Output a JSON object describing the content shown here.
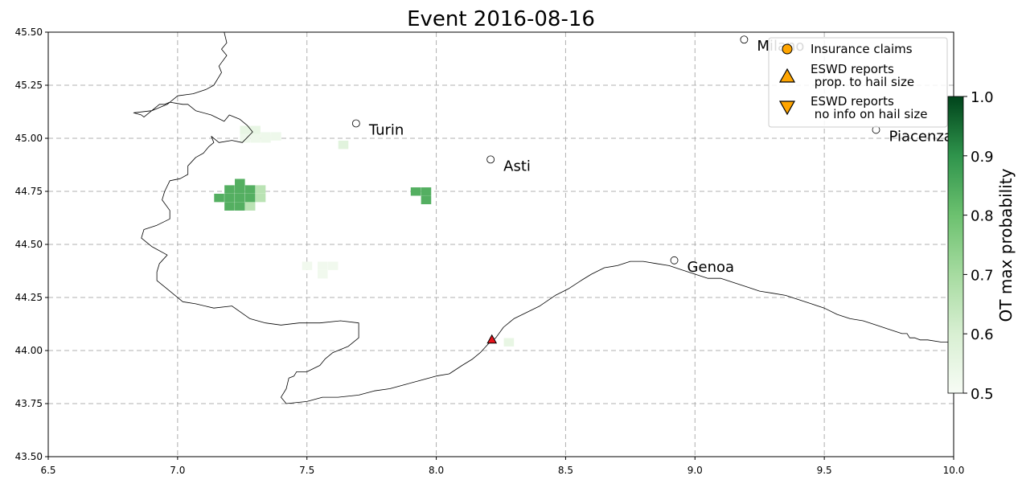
{
  "title": "Event 2016-08-16",
  "chart_data": {
    "type": "heatmap",
    "title": "Event 2016-08-16",
    "xlim": [
      6.5,
      10.0
    ],
    "ylim": [
      43.5,
      45.5
    ],
    "x_ticks": [
      "6.5",
      "7.0",
      "7.5",
      "8.0",
      "8.5",
      "9.0",
      "9.5",
      "10.0"
    ],
    "y_ticks": [
      "43.50",
      "43.75",
      "44.00",
      "44.25",
      "44.50",
      "44.75",
      "45.00",
      "45.25",
      "45.50"
    ],
    "grid": true,
    "cell_size_deg": 0.0375,
    "cells": [
      {
        "lon": 7.26,
        "lat": 45.04,
        "p": 0.55
      },
      {
        "lon": 7.3,
        "lat": 45.04,
        "p": 0.55
      },
      {
        "lon": 7.26,
        "lat": 45.0,
        "p": 0.53
      },
      {
        "lon": 7.3,
        "lat": 45.0,
        "p": 0.53
      },
      {
        "lon": 7.34,
        "lat": 45.0,
        "p": 0.53
      },
      {
        "lon": 7.34,
        "lat": 45.01,
        "p": 0.53
      },
      {
        "lon": 7.38,
        "lat": 45.01,
        "p": 0.53
      },
      {
        "lon": 7.64,
        "lat": 44.97,
        "p": 0.57
      },
      {
        "lon": 7.24,
        "lat": 44.79,
        "p": 0.84
      },
      {
        "lon": 7.2,
        "lat": 44.76,
        "p": 0.84
      },
      {
        "lon": 7.24,
        "lat": 44.76,
        "p": 0.84
      },
      {
        "lon": 7.28,
        "lat": 44.76,
        "p": 0.84
      },
      {
        "lon": 7.32,
        "lat": 44.76,
        "p": 0.66
      },
      {
        "lon": 7.16,
        "lat": 44.72,
        "p": 0.84
      },
      {
        "lon": 7.2,
        "lat": 44.72,
        "p": 0.84
      },
      {
        "lon": 7.24,
        "lat": 44.72,
        "p": 0.84
      },
      {
        "lon": 7.28,
        "lat": 44.72,
        "p": 0.84
      },
      {
        "lon": 7.32,
        "lat": 44.72,
        "p": 0.66
      },
      {
        "lon": 7.2,
        "lat": 44.68,
        "p": 0.84
      },
      {
        "lon": 7.24,
        "lat": 44.68,
        "p": 0.84
      },
      {
        "lon": 7.28,
        "lat": 44.68,
        "p": 0.66
      },
      {
        "lon": 7.92,
        "lat": 44.75,
        "p": 0.84
      },
      {
        "lon": 7.96,
        "lat": 44.75,
        "p": 0.84
      },
      {
        "lon": 7.96,
        "lat": 44.71,
        "p": 0.84
      },
      {
        "lon": 7.5,
        "lat": 44.4,
        "p": 0.52
      },
      {
        "lon": 7.56,
        "lat": 44.4,
        "p": 0.52
      },
      {
        "lon": 7.6,
        "lat": 44.4,
        "p": 0.52
      },
      {
        "lon": 7.56,
        "lat": 44.36,
        "p": 0.52
      },
      {
        "lon": 8.28,
        "lat": 44.04,
        "p": 0.55
      }
    ],
    "cities": [
      {
        "name": "Turin",
        "lon": 7.69,
        "lat": 45.07
      },
      {
        "name": "Asti",
        "lon": 8.21,
        "lat": 44.9
      },
      {
        "name": "Milano",
        "lon": 9.19,
        "lat": 45.465
      },
      {
        "name": "Piacenza",
        "lon": 9.7,
        "lat": 45.04
      },
      {
        "name": "Genoa",
        "lon": 8.92,
        "lat": 44.425
      }
    ],
    "eswd_reports": [
      {
        "lon": 8.215,
        "lat": 44.05,
        "hail_size": "small"
      }
    ],
    "insurance_claims": [],
    "legend": {
      "placement": "top-right",
      "items": [
        {
          "label": "Insurance claims",
          "marker": "circle"
        },
        {
          "label": "ESWD reports\n prop. to hail size",
          "marker": "triangle-up"
        },
        {
          "label": "ESWD reports\n no info on hail size",
          "marker": "triangle-down"
        }
      ]
    },
    "colorbar": {
      "label": "OT max probability",
      "min": 0.5,
      "max": 1.0,
      "ticks": [
        "0.5",
        "0.6",
        "0.7",
        "0.8",
        "0.9",
        "1.0"
      ],
      "colormap": "Greens"
    },
    "coastline": [
      [
        7.13,
        45.01
      ],
      [
        7.16,
        44.98
      ],
      [
        7.21,
        44.99
      ],
      [
        7.25,
        44.98
      ],
      [
        7.29,
        45.03
      ],
      [
        7.27,
        45.06
      ],
      [
        7.24,
        45.09
      ],
      [
        7.2,
        45.11
      ],
      [
        7.18,
        45.08
      ],
      [
        7.13,
        45.11
      ],
      [
        7.07,
        45.13
      ],
      [
        7.04,
        45.16
      ],
      [
        7.02,
        45.16
      ],
      [
        6.97,
        45.17
      ],
      [
        6.95,
        45.16
      ],
      [
        6.93,
        45.16
      ],
      [
        6.87,
        45.1
      ],
      [
        6.86,
        45.11
      ],
      [
        6.83,
        45.12
      ],
      [
        6.9,
        45.13
      ],
      [
        6.96,
        45.16
      ],
      [
        7.0,
        45.2
      ],
      [
        7.06,
        45.21
      ],
      [
        7.11,
        45.23
      ],
      [
        7.14,
        45.25
      ],
      [
        7.17,
        45.31
      ],
      [
        7.16,
        45.34
      ],
      [
        7.19,
        45.39
      ],
      [
        7.17,
        45.42
      ],
      [
        7.19,
        45.45
      ],
      [
        7.18,
        45.5
      ]
    ],
    "border": [
      [
        7.13,
        45.01
      ],
      [
        7.14,
        44.98
      ],
      [
        7.12,
        44.96
      ],
      [
        7.1,
        44.93
      ],
      [
        7.07,
        44.91
      ],
      [
        7.04,
        44.87
      ],
      [
        7.04,
        44.83
      ],
      [
        7.01,
        44.81
      ],
      [
        6.97,
        44.8
      ],
      [
        6.95,
        44.75
      ],
      [
        6.94,
        44.71
      ],
      [
        6.97,
        44.66
      ],
      [
        6.97,
        44.62
      ],
      [
        6.92,
        44.59
      ],
      [
        6.87,
        44.57
      ],
      [
        6.86,
        44.53
      ],
      [
        6.9,
        44.49
      ],
      [
        6.96,
        44.45
      ],
      [
        6.93,
        44.41
      ],
      [
        6.92,
        44.37
      ],
      [
        6.92,
        44.33
      ],
      [
        6.96,
        44.29
      ],
      [
        7.02,
        44.23
      ],
      [
        7.07,
        44.22
      ],
      [
        7.14,
        44.2
      ],
      [
        7.21,
        44.21
      ],
      [
        7.28,
        44.15
      ],
      [
        7.34,
        44.13
      ],
      [
        7.4,
        44.12
      ],
      [
        7.47,
        44.13
      ],
      [
        7.55,
        44.13
      ],
      [
        7.63,
        44.14
      ],
      [
        7.7,
        44.13
      ],
      [
        7.7,
        44.06
      ],
      [
        7.66,
        44.02
      ],
      [
        7.6,
        43.99
      ],
      [
        7.57,
        43.96
      ],
      [
        7.55,
        43.93
      ],
      [
        7.5,
        43.9
      ],
      [
        7.46,
        43.9
      ],
      [
        7.45,
        43.88
      ],
      [
        7.43,
        43.87
      ],
      [
        7.42,
        43.82
      ],
      [
        7.4,
        43.78
      ],
      [
        7.42,
        43.75
      ],
      [
        7.5,
        43.76
      ],
      [
        7.56,
        43.78
      ],
      [
        7.62,
        43.78
      ],
      [
        7.7,
        43.79
      ],
      [
        7.76,
        43.81
      ],
      [
        7.82,
        43.82
      ],
      [
        7.88,
        43.84
      ],
      [
        7.94,
        43.86
      ],
      [
        8.0,
        43.88
      ],
      [
        8.05,
        43.89
      ],
      [
        8.1,
        43.93
      ],
      [
        8.14,
        43.96
      ],
      [
        8.17,
        43.99
      ],
      [
        8.2,
        44.03
      ],
      [
        8.23,
        44.06
      ],
      [
        8.26,
        44.11
      ],
      [
        8.3,
        44.15
      ],
      [
        8.35,
        44.18
      ],
      [
        8.4,
        44.21
      ],
      [
        8.46,
        44.26
      ],
      [
        8.51,
        44.29
      ],
      [
        8.56,
        44.33
      ],
      [
        8.6,
        44.36
      ],
      [
        8.65,
        44.39
      ],
      [
        8.7,
        44.4
      ],
      [
        8.75,
        44.42
      ],
      [
        8.8,
        44.42
      ],
      [
        8.85,
        44.41
      ],
      [
        8.9,
        44.4
      ],
      [
        8.95,
        44.38
      ],
      [
        9.0,
        44.36
      ],
      [
        9.05,
        44.34
      ],
      [
        9.1,
        44.34
      ],
      [
        9.15,
        44.32
      ],
      [
        9.2,
        44.3
      ],
      [
        9.25,
        44.28
      ],
      [
        9.3,
        44.27
      ],
      [
        9.35,
        44.26
      ],
      [
        9.4,
        44.24
      ],
      [
        9.45,
        44.22
      ],
      [
        9.5,
        44.2
      ],
      [
        9.55,
        44.17
      ],
      [
        9.6,
        44.15
      ],
      [
        9.65,
        44.14
      ],
      [
        9.7,
        44.12
      ],
      [
        9.75,
        44.1
      ],
      [
        9.8,
        44.08
      ],
      [
        9.82,
        44.08
      ],
      [
        9.83,
        44.06
      ],
      [
        9.85,
        44.06
      ],
      [
        9.87,
        44.05
      ],
      [
        9.9,
        44.05
      ],
      [
        9.95,
        44.04
      ],
      [
        10.0,
        44.04
      ]
    ]
  }
}
